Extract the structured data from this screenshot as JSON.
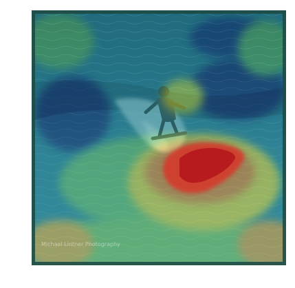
{
  "image": {
    "kind": "saliency-heatmap-overlay",
    "subject": "surfer riding a wave",
    "colormap": "jet",
    "watermark_text": "Michael Lintner Photography",
    "colors": {
      "ocean_deep": "#123a52",
      "ocean_mid": "#2c6f88",
      "wave_foam": "#b8d6dc",
      "heat_low": "#1f3b6b",
      "heat_mid": "#3fae8f",
      "heat_high": "#f2e53a",
      "heat_peak": "#c9151b"
    }
  }
}
